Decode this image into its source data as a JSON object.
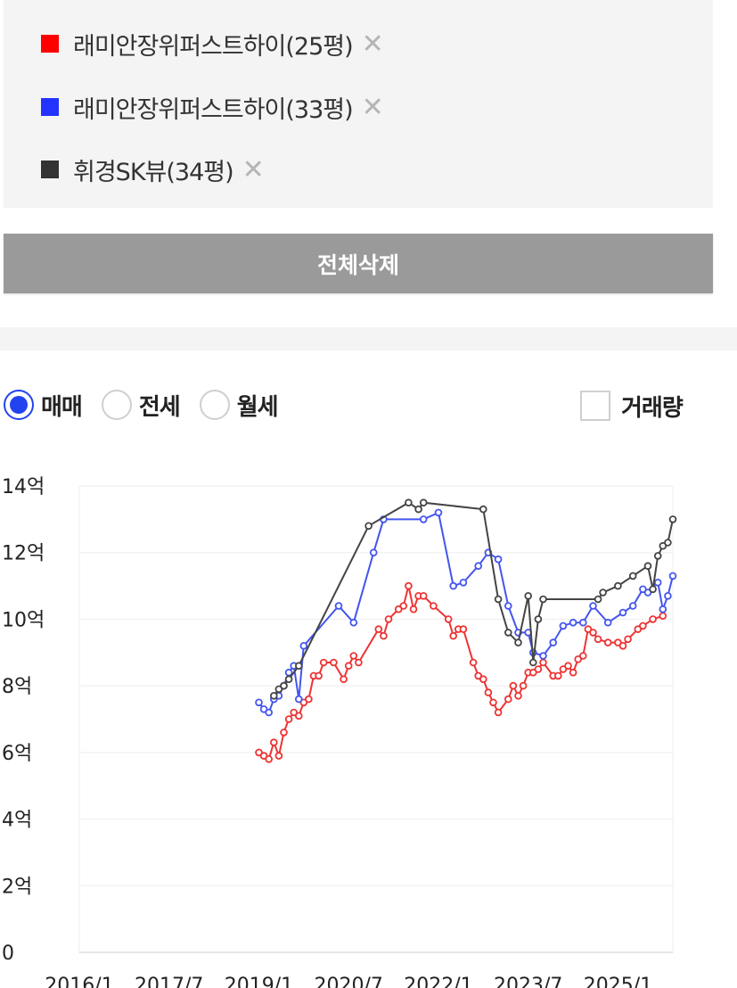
{
  "compare_list": {
    "items": [
      {
        "label": "래미안장위퍼스트하이(25평)",
        "color": "#ff0000"
      },
      {
        "label": "래미안장위퍼스트하이(33평)",
        "color": "#2233ff"
      },
      {
        "label": "휘경SK뷰(34평)",
        "color": "#333333"
      }
    ],
    "remove_glyph": "✕"
  },
  "delete_all_label": "전체삭제",
  "deal_type": {
    "options": [
      {
        "label": "매매",
        "checked": true
      },
      {
        "label": "전세",
        "checked": false
      },
      {
        "label": "월세",
        "checked": false
      }
    ]
  },
  "volume_toggle": {
    "label": "거래량",
    "checked": false
  },
  "chart_data": {
    "type": "line",
    "x_tick_labels": [
      "2016/1",
      "2017/7",
      "2019/1",
      "2020/7",
      "2022/1",
      "2023/7",
      "2025/1"
    ],
    "y_tick_labels": [
      "0",
      "2억",
      "4억",
      "6억",
      "8억",
      "10억",
      "12억",
      "14억"
    ],
    "ylim": [
      0,
      14
    ],
    "y_unit": "억",
    "xlim": [
      "2016-01",
      "2025-12"
    ],
    "grid": true,
    "series": [
      {
        "name": "래미안장위퍼스트하이(25평)",
        "color": "#ee3333",
        "points": [
          [
            "2019-01",
            6.0
          ],
          [
            "2019-02",
            5.9
          ],
          [
            "2019-03",
            5.8
          ],
          [
            "2019-04",
            6.3
          ],
          [
            "2019-05",
            5.9
          ],
          [
            "2019-06",
            6.6
          ],
          [
            "2019-07",
            7.0
          ],
          [
            "2019-08",
            7.2
          ],
          [
            "2019-09",
            7.1
          ],
          [
            "2019-10",
            7.5
          ],
          [
            "2019-11",
            7.6
          ],
          [
            "2019-12",
            8.3
          ],
          [
            "2020-01",
            8.3
          ],
          [
            "2020-02",
            8.7
          ],
          [
            "2020-04",
            8.7
          ],
          [
            "2020-06",
            8.2
          ],
          [
            "2020-07",
            8.6
          ],
          [
            "2020-08",
            8.9
          ],
          [
            "2020-09",
            8.7
          ],
          [
            "2021-01",
            9.7
          ],
          [
            "2021-02",
            9.5
          ],
          [
            "2021-03",
            10.0
          ],
          [
            "2021-05",
            10.3
          ],
          [
            "2021-06",
            10.4
          ],
          [
            "2021-07",
            11.0
          ],
          [
            "2021-08",
            10.3
          ],
          [
            "2021-09",
            10.7
          ],
          [
            "2021-10",
            10.7
          ],
          [
            "2021-12",
            10.4
          ],
          [
            "2022-03",
            10.0
          ],
          [
            "2022-04",
            9.5
          ],
          [
            "2022-05",
            9.7
          ],
          [
            "2022-06",
            9.7
          ],
          [
            "2022-08",
            8.7
          ],
          [
            "2022-09",
            8.3
          ],
          [
            "2022-10",
            8.2
          ],
          [
            "2022-11",
            7.8
          ],
          [
            "2022-12",
            7.5
          ],
          [
            "2023-01",
            7.2
          ],
          [
            "2023-03",
            7.6
          ],
          [
            "2023-04",
            8.0
          ],
          [
            "2023-05",
            7.7
          ],
          [
            "2023-06",
            8.0
          ],
          [
            "2023-07",
            8.4
          ],
          [
            "2023-08",
            8.4
          ],
          [
            "2023-09",
            8.5
          ],
          [
            "2023-10",
            8.7
          ],
          [
            "2023-12",
            8.3
          ],
          [
            "2024-01",
            8.3
          ],
          [
            "2024-02",
            8.5
          ],
          [
            "2024-03",
            8.6
          ],
          [
            "2024-04",
            8.4
          ],
          [
            "2024-05",
            8.8
          ],
          [
            "2024-06",
            8.9
          ],
          [
            "2024-07",
            9.7
          ],
          [
            "2024-08",
            9.6
          ],
          [
            "2024-09",
            9.4
          ],
          [
            "2024-11",
            9.3
          ],
          [
            "2025-01",
            9.3
          ],
          [
            "2025-02",
            9.2
          ],
          [
            "2025-03",
            9.4
          ],
          [
            "2025-05",
            9.7
          ],
          [
            "2025-06",
            9.8
          ],
          [
            "2025-08",
            10.0
          ],
          [
            "2025-10",
            10.1
          ]
        ]
      },
      {
        "name": "래미안장위퍼스트하이(33평)",
        "color": "#4455ee",
        "points": [
          [
            "2019-01",
            7.5
          ],
          [
            "2019-02",
            7.3
          ],
          [
            "2019-03",
            7.2
          ],
          [
            "2019-04",
            7.6
          ],
          [
            "2019-05",
            7.7
          ],
          [
            "2019-06",
            8.0
          ],
          [
            "2019-07",
            8.4
          ],
          [
            "2019-08",
            8.6
          ],
          [
            "2019-09",
            7.6
          ],
          [
            "2019-10",
            9.2
          ],
          [
            "2020-05",
            10.4
          ],
          [
            "2020-08",
            9.9
          ],
          [
            "2020-12",
            12.0
          ],
          [
            "2021-02",
            13.0
          ],
          [
            "2021-10",
            13.0
          ],
          [
            "2022-01",
            13.2
          ],
          [
            "2022-04",
            11.0
          ],
          [
            "2022-06",
            11.1
          ],
          [
            "2022-09",
            11.6
          ],
          [
            "2022-11",
            12.0
          ],
          [
            "2023-01",
            11.8
          ],
          [
            "2023-03",
            10.4
          ],
          [
            "2023-05",
            9.6
          ],
          [
            "2023-07",
            9.6
          ],
          [
            "2023-08",
            9.0
          ],
          [
            "2023-10",
            8.9
          ],
          [
            "2023-12",
            9.3
          ],
          [
            "2024-02",
            9.8
          ],
          [
            "2024-04",
            9.9
          ],
          [
            "2024-06",
            9.9
          ],
          [
            "2024-08",
            10.4
          ],
          [
            "2024-11",
            9.9
          ],
          [
            "2025-02",
            10.2
          ],
          [
            "2025-04",
            10.4
          ],
          [
            "2025-06",
            10.9
          ],
          [
            "2025-07",
            10.8
          ],
          [
            "2025-09",
            11.1
          ],
          [
            "2025-10",
            10.3
          ],
          [
            "2025-11",
            10.7
          ],
          [
            "2025-12",
            11.3
          ]
        ]
      },
      {
        "name": "휘경SK뷰(34평)",
        "color": "#444444",
        "points": [
          [
            "2019-04",
            7.7
          ],
          [
            "2019-05",
            7.9
          ],
          [
            "2019-06",
            8.0
          ],
          [
            "2019-07",
            8.2
          ],
          [
            "2019-09",
            8.6
          ],
          [
            "2020-11",
            12.8
          ],
          [
            "2021-07",
            13.5
          ],
          [
            "2021-09",
            13.3
          ],
          [
            "2021-10",
            13.5
          ],
          [
            "2022-10",
            13.3
          ],
          [
            "2023-01",
            10.6
          ],
          [
            "2023-03",
            9.6
          ],
          [
            "2023-05",
            9.3
          ],
          [
            "2023-07",
            10.7
          ],
          [
            "2023-08",
            8.7
          ],
          [
            "2023-09",
            10.0
          ],
          [
            "2023-10",
            10.6
          ],
          [
            "2024-09",
            10.6
          ],
          [
            "2024-10",
            10.8
          ],
          [
            "2025-01",
            11.0
          ],
          [
            "2025-04",
            11.3
          ],
          [
            "2025-07",
            11.6
          ],
          [
            "2025-08",
            10.9
          ],
          [
            "2025-09",
            11.9
          ],
          [
            "2025-10",
            12.2
          ],
          [
            "2025-11",
            12.3
          ],
          [
            "2025-12",
            13.0
          ]
        ]
      }
    ]
  }
}
